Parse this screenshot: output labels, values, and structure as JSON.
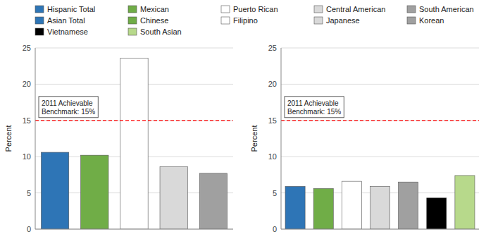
{
  "chart_data": [
    {
      "type": "bar",
      "categories": [
        "Hispanic Total",
        "Mexican",
        "Puerto Rican",
        "Central American",
        "South American"
      ],
      "values": [
        10.6,
        10.2,
        23.6,
        8.6,
        7.7
      ],
      "colors": [
        "#2E75B6",
        "#70AD47",
        "#FFFFFF",
        "#D9D9D9",
        "#A0A0A0"
      ],
      "y_label": "Percent",
      "ylim": [
        0,
        25
      ],
      "yticks": [
        0,
        5,
        10,
        15,
        20,
        25
      ],
      "grid": true,
      "legend": "top",
      "tick_labels": "y",
      "benchmark": {
        "value": 15,
        "label": "2011 Achievable\nBenchmark: 15%",
        "color": "#FF0000"
      }
    },
    {
      "type": "bar",
      "categories": [
        "Asian Total",
        "Chinese",
        "Filipino",
        "Japanese",
        "Korean",
        "Vietnamese",
        "South Asian"
      ],
      "values": [
        5.9,
        5.6,
        6.6,
        5.9,
        6.5,
        4.3,
        7.4
      ],
      "colors": [
        "#2E75B6",
        "#70AD47",
        "#FFFFFF",
        "#D9D9D9",
        "#A0A0A0",
        "#000000",
        "#B7D98B"
      ],
      "y_label": "Percent",
      "ylim": [
        0,
        25
      ],
      "yticks": [
        0,
        5,
        10,
        15,
        20,
        25
      ],
      "grid": true,
      "legend": "top",
      "tick_labels": "y",
      "benchmark": {
        "value": 15,
        "label": "2011 Achievable\nBenchmark: 15%",
        "color": "#FF0000"
      }
    }
  ]
}
